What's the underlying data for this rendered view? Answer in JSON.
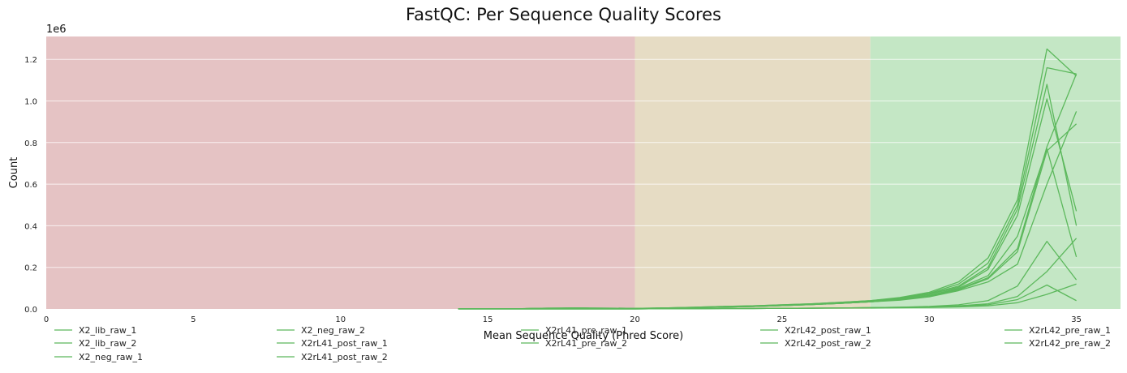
{
  "chart_data": {
    "type": "line",
    "title": "FastQC: Per Sequence Quality Scores",
    "xlabel": "Mean Sequence Quality (Phred Score)",
    "ylabel": "Count",
    "y_exponent_label": "1e6",
    "xlim": [
      0,
      36.5
    ],
    "ylim": [
      0,
      1310000
    ],
    "x_ticks": [
      0,
      5,
      10,
      15,
      20,
      25,
      30,
      35
    ],
    "y_ticks": [
      0,
      0.2,
      0.4,
      0.6,
      0.8,
      1.0,
      1.2
    ],
    "grid": true,
    "legend_position": "bottom",
    "background_bands": [
      {
        "from": 0,
        "to": 20,
        "color": "#e5c3c4"
      },
      {
        "from": 20,
        "to": 28,
        "color": "#e6dcc4"
      },
      {
        "from": 28,
        "to": 36.5,
        "color": "#c4e7c5"
      }
    ],
    "line_color": "#5cb85c",
    "x": [
      14,
      15,
      16,
      17,
      18,
      19,
      20,
      21,
      22,
      23,
      24,
      25,
      26,
      27,
      28,
      29,
      30,
      31,
      32,
      33,
      34,
      35
    ],
    "series": [
      {
        "name": "X2_lib_raw_1",
        "values": [
          500,
          1500,
          1000,
          4000,
          5000,
          4000,
          3000,
          5000,
          8000,
          12000,
          15000,
          20000,
          25000,
          32000,
          40000,
          55000,
          80000,
          130000,
          245000,
          525000,
          1250000,
          1120000
        ]
      },
      {
        "name": "X2_lib_raw_2",
        "values": [
          500,
          1500,
          1000,
          4000,
          5000,
          4000,
          3000,
          5000,
          8000,
          12000,
          15000,
          20000,
          25000,
          32000,
          40000,
          52000,
          75000,
          120000,
          220000,
          500000,
          1160000,
          1130000
        ]
      },
      {
        "name": "X2_neg_raw_1",
        "values": [
          0,
          0,
          0,
          0,
          0,
          0,
          0,
          1000,
          1000,
          2000,
          2000,
          3000,
          4000,
          5000,
          6000,
          8000,
          10000,
          15000,
          25000,
          60000,
          180000,
          340000
        ]
      },
      {
        "name": "X2_neg_raw_2",
        "values": [
          0,
          0,
          0,
          0,
          0,
          0,
          0,
          1000,
          1000,
          2000,
          2000,
          3000,
          4000,
          5000,
          6000,
          8000,
          12000,
          20000,
          40000,
          110000,
          325000,
          140000
        ]
      },
      {
        "name": "X2rL41_post_raw_1",
        "values": [
          500,
          1000,
          1000,
          3000,
          4000,
          3000,
          2500,
          4500,
          7000,
          11000,
          14000,
          18000,
          23000,
          30000,
          38000,
          50000,
          72000,
          110000,
          200000,
          480000,
          1080000,
          400000
        ]
      },
      {
        "name": "X2rL41_post_raw_2",
        "values": [
          500,
          1000,
          1000,
          3000,
          4000,
          3000,
          2500,
          4500,
          7000,
          11000,
          14000,
          18000,
          23000,
          30000,
          38000,
          48000,
          70000,
          105000,
          190000,
          450000,
          1010000,
          470000
        ]
      },
      {
        "name": "X2rL41_pre_raw_1",
        "values": [
          500,
          1000,
          1000,
          3000,
          4000,
          3000,
          2500,
          4000,
          6000,
          9000,
          12000,
          16000,
          21000,
          27000,
          34000,
          45000,
          65000,
          95000,
          150000,
          290000,
          780000,
          1130000
        ]
      },
      {
        "name": "X2rL41_pre_raw_2",
        "values": [
          500,
          1000,
          1000,
          3000,
          4000,
          3000,
          2500,
          4000,
          6000,
          9000,
          12000,
          16000,
          21000,
          27000,
          34000,
          45000,
          62000,
          92000,
          145000,
          275000,
          760000,
          890000
        ]
      },
      {
        "name": "X2rL42_post_raw_1",
        "values": [
          500,
          1000,
          1000,
          3000,
          4000,
          3000,
          2500,
          4000,
          6000,
          9000,
          12000,
          16000,
          21000,
          27000,
          34000,
          45000,
          65000,
          100000,
          160000,
          350000,
          770000,
          250000
        ]
      },
      {
        "name": "X2rL42_post_raw_2",
        "values": [
          500,
          1000,
          1000,
          3000,
          4000,
          3000,
          2500,
          4000,
          6000,
          9000,
          12000,
          16000,
          21000,
          27000,
          34000,
          42000,
          58000,
          88000,
          130000,
          215000,
          600000,
          950000
        ]
      },
      {
        "name": "X2rL42_pre_raw_1",
        "values": [
          0,
          0,
          0,
          0,
          0,
          0,
          0,
          1000,
          1000,
          2000,
          2000,
          3000,
          4000,
          5000,
          6000,
          7000,
          9000,
          13000,
          20000,
          45000,
          115000,
          40000
        ]
      },
      {
        "name": "X2rL42_pre_raw_2",
        "values": [
          0,
          0,
          0,
          0,
          0,
          0,
          0,
          1000,
          1000,
          2000,
          2000,
          3000,
          3000,
          4000,
          5000,
          6000,
          7000,
          10000,
          15000,
          30000,
          70000,
          120000
        ]
      }
    ],
    "legend_columns": [
      [
        "X2_lib_raw_1",
        "X2_lib_raw_2",
        "X2_neg_raw_1"
      ],
      [
        "X2_neg_raw_2",
        "X2rL41_post_raw_1",
        "X2rL41_post_raw_2"
      ],
      [
        "X2rL41_pre_raw_1",
        "X2rL41_pre_raw_2"
      ],
      [
        "X2rL42_post_raw_1",
        "X2rL42_post_raw_2"
      ],
      [
        "X2rL42_pre_raw_1",
        "X2rL42_pre_raw_2"
      ]
    ]
  }
}
